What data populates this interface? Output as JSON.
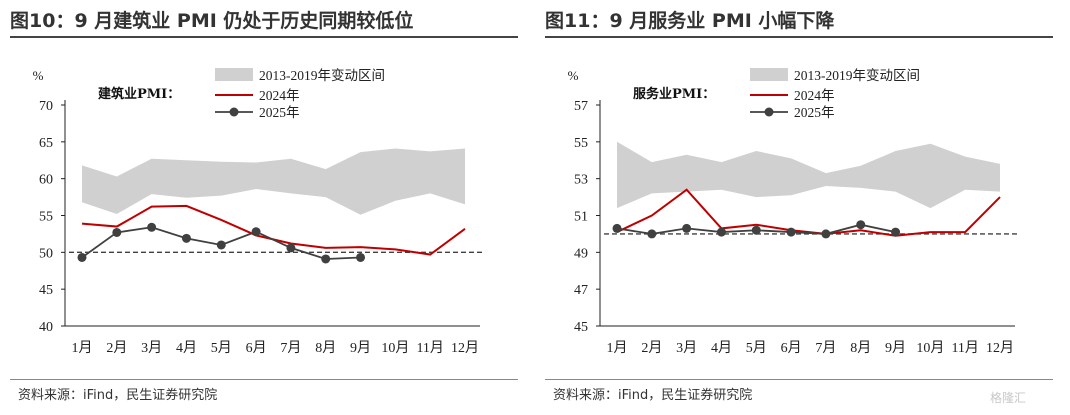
{
  "panels": [
    {
      "title": "图10：9 月建筑业 PMI 仍处于历史同期较低位",
      "source": "资料来源：iFind，民生证券研究院",
      "chart_data": {
        "type": "line",
        "series_label": "建筑业PMI：",
        "yunit": "%",
        "ylim": [
          40,
          70
        ],
        "yticks": [
          40,
          45,
          50,
          55,
          60,
          65,
          70
        ],
        "categories": [
          "1月",
          "2月",
          "3月",
          "4月",
          "5月",
          "6月",
          "7月",
          "8月",
          "9月",
          "10月",
          "11月",
          "12月"
        ],
        "band": {
          "name": "2013-2019年变动区间",
          "low": [
            56.8,
            55.2,
            57.9,
            57.4,
            57.7,
            58.6,
            58.0,
            57.5,
            55.1,
            57.0,
            58.0,
            56.5
          ],
          "high": [
            61.8,
            60.3,
            62.7,
            62.5,
            62.3,
            62.2,
            62.7,
            61.3,
            63.6,
            64.1,
            63.7,
            64.1
          ]
        },
        "series": [
          {
            "name": "2024年",
            "values": [
              53.9,
              53.5,
              56.2,
              56.3,
              54.4,
              52.3,
              51.2,
              50.6,
              50.7,
              50.4,
              49.7,
              53.2
            ]
          },
          {
            "name": "2025年",
            "values": [
              49.3,
              52.7,
              53.4,
              51.9,
              51.0,
              52.8,
              50.6,
              49.1,
              49.3,
              null,
              null,
              null
            ]
          }
        ],
        "reference_line": 50,
        "colors": {
          "band": "#d0d0d0",
          "s2024": "#c00000",
          "s2025": "#404040",
          "ref": "#404040"
        }
      }
    },
    {
      "title": "图11：9 月服务业 PMI 小幅下降",
      "source": "资料来源：iFind，民生证券研究院",
      "chart_data": {
        "type": "line",
        "series_label": "服务业PMI：",
        "yunit": "%",
        "ylim": [
          45,
          57
        ],
        "yticks": [
          45,
          47,
          49,
          51,
          53,
          55,
          57
        ],
        "categories": [
          "1月",
          "2月",
          "3月",
          "4月",
          "5月",
          "6月",
          "7月",
          "8月",
          "9月",
          "10月",
          "11月",
          "12月"
        ],
        "band": {
          "name": "2013-2019年变动区间",
          "low": [
            51.4,
            52.2,
            52.3,
            52.4,
            52.0,
            52.1,
            52.6,
            52.5,
            52.3,
            51.4,
            52.4,
            52.3
          ],
          "high": [
            55.0,
            53.9,
            54.3,
            53.9,
            54.5,
            54.1,
            53.3,
            53.7,
            54.5,
            54.9,
            54.2,
            53.8
          ]
        },
        "series": [
          {
            "name": "2024年",
            "values": [
              50.1,
              51.0,
              52.4,
              50.3,
              50.5,
              50.2,
              50.0,
              50.2,
              49.9,
              50.1,
              50.1,
              52.0
            ]
          },
          {
            "name": "2025年",
            "values": [
              50.3,
              50.0,
              50.3,
              50.1,
              50.2,
              50.1,
              50.0,
              50.5,
              50.1,
              null,
              null,
              null
            ]
          }
        ],
        "reference_line": 50,
        "colors": {
          "band": "#d0d0d0",
          "s2024": "#c00000",
          "s2025": "#404040",
          "ref": "#404040"
        }
      }
    }
  ],
  "watermark": "格隆汇"
}
